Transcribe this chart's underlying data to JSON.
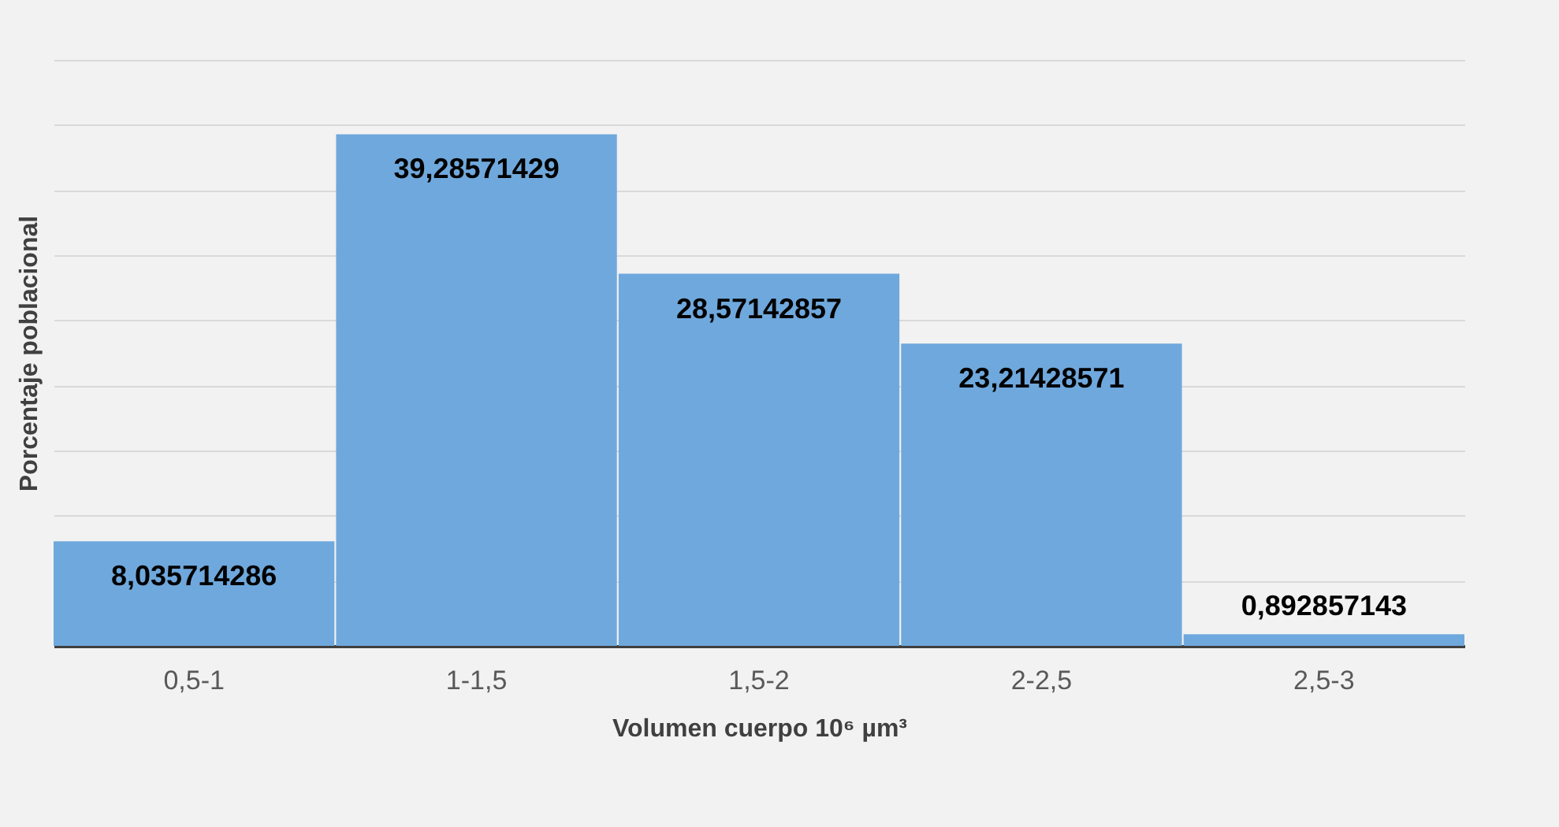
{
  "chart_data": {
    "type": "bar",
    "xlabel": "Volumen cuerpo 10⁶ µm³",
    "ylabel": "Porcentaje poblacional",
    "categories": [
      "0,5-1",
      "1-1,5",
      "1,5-2",
      "2-2,5",
      "2,5-3"
    ],
    "values": [
      8.035714286,
      39.28571429,
      28.57142857,
      23.21428571,
      0.892857143
    ],
    "value_labels": [
      "8,035714286",
      "39,28571429",
      "28,57142857",
      "23,21428571",
      "0,892857143"
    ],
    "color": "#6fa8dc",
    "ylim": [
      0,
      45
    ],
    "yticks": [
      {
        "value": 0,
        "label": null
      },
      {
        "value": 5,
        "label": null
      },
      {
        "value": 10,
        "label": null
      },
      {
        "value": 15,
        "label": null
      },
      {
        "value": 20,
        "label": null
      },
      {
        "value": 25,
        "label": null
      },
      {
        "value": 30,
        "label": null
      },
      {
        "value": 35,
        "label": null
      },
      {
        "value": 40,
        "label": null
      },
      {
        "value": 45,
        "label": null
      }
    ],
    "grid": "y",
    "tick_labels": "x"
  }
}
